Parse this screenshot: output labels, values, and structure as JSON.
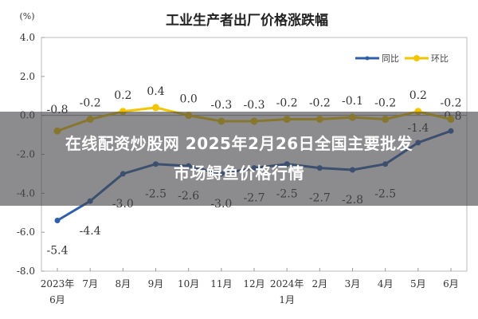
{
  "chart_data": {
    "type": "line",
    "title": "工业生产者出厂价格涨跌幅",
    "ylabel": "(%)",
    "ylim": [
      -8.0,
      4.0
    ],
    "yticks": [
      "4.0",
      "2.0",
      "0.0",
      "-2.0",
      "-4.0",
      "-6.0",
      "-8.0"
    ],
    "categories": [
      "2023年6月",
      "7月",
      "8月",
      "9月",
      "10月",
      "11月",
      "12月",
      "2024年1月",
      "2月",
      "3月",
      "4月",
      "5月",
      "6月"
    ],
    "legend_position": "top-right",
    "grid": false,
    "series": [
      {
        "name": "同比",
        "color": "#2e5fa8",
        "values": [
          -5.4,
          -4.4,
          -3.0,
          -2.5,
          -2.6,
          -3.0,
          -2.7,
          -2.5,
          -2.7,
          -2.8,
          -2.5,
          -1.4,
          -0.8
        ]
      },
      {
        "name": "环比",
        "color": "#f2c500",
        "values": [
          -0.8,
          -0.2,
          0.2,
          0.4,
          0.0,
          -0.3,
          -0.3,
          -0.2,
          -0.2,
          -0.1,
          -0.2,
          0.2,
          -0.2
        ]
      }
    ]
  },
  "overlay": {
    "line1": "在线配资炒股网 2025年2月26日全国主要批发",
    "line2": "市场鲟鱼价格行情"
  }
}
